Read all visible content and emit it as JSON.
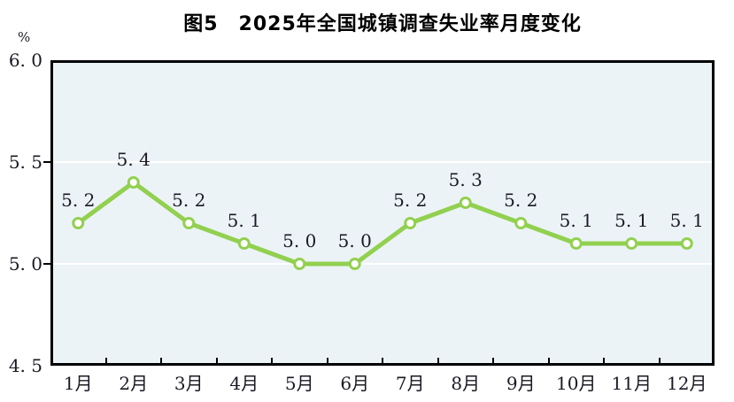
{
  "chart_data": {
    "type": "line",
    "title": "图5　2025年全国城镇调查失业率月度变化",
    "unit_label": "%",
    "categories": [
      "1月",
      "2月",
      "3月",
      "4月",
      "5月",
      "6月",
      "7月",
      "8月",
      "9月",
      "10月",
      "11月",
      "12月"
    ],
    "values": [
      5.2,
      5.4,
      5.2,
      5.1,
      5.0,
      5.0,
      5.2,
      5.3,
      5.2,
      5.1,
      5.1,
      5.1
    ],
    "point_labels": [
      "5. 2",
      "5. 4",
      "5. 2",
      "5. 1",
      "5. 0",
      "5. 0",
      "5. 2",
      "5. 3",
      "5. 2",
      "5. 1",
      "5. 1",
      "5. 1"
    ],
    "ylim": [
      4.5,
      6.0
    ],
    "y_ticks": [
      {
        "value": 6.0,
        "label": "6. 0"
      },
      {
        "value": 5.5,
        "label": "5. 5"
      },
      {
        "value": 5.0,
        "label": "5. 0"
      },
      {
        "value": 4.5,
        "label": "4. 5"
      }
    ],
    "grid": true,
    "legend": false,
    "colors": {
      "line": "#92d050",
      "marker_fill": "#ffffff",
      "plot_background": "#ecf3f7",
      "gridline": "#ffffff",
      "axis": "#000000",
      "text": "#1a1a24"
    }
  }
}
